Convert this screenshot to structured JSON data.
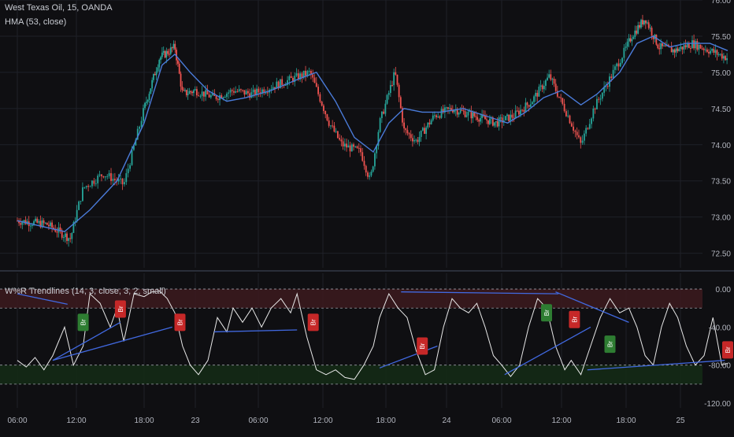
{
  "colors": {
    "bg": "#0f0f12",
    "grid": "#1f2128",
    "up": "#26a69a",
    "down": "#ef5350",
    "hma": "#4a7bd9",
    "wpr": "#e8e8e8",
    "trend": "#4169e1",
    "ob_band": "#3a1a1e",
    "os_band": "#142a16",
    "bull_label": "#2e7d32",
    "bear_label": "#c62828",
    "divider": "#2a2e39"
  },
  "price_pane": {
    "title": "West Texas Oil, 15, OANDA",
    "indicator": "HMA (53, close)",
    "ylim": [
      72.3,
      76.0
    ],
    "ticks": [
      "76.00",
      "75.50",
      "75.00",
      "74.50",
      "74.00",
      "73.50",
      "73.00",
      "72.50"
    ],
    "tick_values": [
      76.0,
      75.5,
      75.0,
      74.5,
      74.0,
      73.5,
      73.0,
      72.5
    ]
  },
  "osc_pane": {
    "title": "W%R Trendlines (14, 3, close, 3, 2, small)",
    "ylim": [
      -120,
      10
    ],
    "ticks": [
      "0.00",
      "-40.00",
      "-80.00",
      "-120.00"
    ],
    "tick_values": [
      0,
      -40,
      -80,
      -120
    ],
    "ob_levels": [
      0,
      -20
    ],
    "os_levels": [
      -80,
      -100
    ]
  },
  "time_axis": {
    "labels": [
      "06:00",
      "12:00",
      "18:00",
      "23",
      "06:00",
      "12:00",
      "18:00",
      "24",
      "06:00",
      "12:00",
      "18:00",
      "25"
    ]
  },
  "chart_data": {
    "type": "line",
    "x_label_positions": [
      0,
      1,
      2,
      3,
      4,
      5,
      6,
      7,
      8,
      9,
      10,
      11
    ],
    "price_close_key": [
      [
        0,
        72.95
      ],
      [
        0.5,
        72.9
      ],
      [
        0.9,
        72.7
      ],
      [
        1.1,
        73.4
      ],
      [
        1.4,
        73.6
      ],
      [
        1.7,
        73.45
      ],
      [
        2.0,
        74.5
      ],
      [
        2.3,
        75.2
      ],
      [
        2.6,
        75.35
      ],
      [
        2.75,
        74.7
      ],
      [
        3.0,
        74.75
      ],
      [
        3.3,
        74.65
      ],
      [
        3.6,
        74.75
      ],
      [
        3.9,
        74.7
      ],
      [
        4.2,
        74.8
      ],
      [
        4.5,
        74.9
      ],
      [
        4.8,
        75.0
      ],
      [
        5.1,
        74.3
      ],
      [
        5.3,
        74.0
      ],
      [
        5.6,
        73.9
      ],
      [
        5.75,
        73.5
      ],
      [
        5.9,
        74.3
      ],
      [
        6.15,
        75.0
      ],
      [
        6.3,
        74.2
      ],
      [
        6.5,
        74.05
      ],
      [
        6.8,
        74.4
      ],
      [
        7.1,
        74.5
      ],
      [
        7.5,
        74.4
      ],
      [
        7.9,
        74.3
      ],
      [
        8.2,
        74.4
      ],
      [
        8.5,
        74.6
      ],
      [
        8.8,
        74.95
      ],
      [
        9.1,
        74.4
      ],
      [
        9.3,
        74.0
      ],
      [
        9.5,
        74.5
      ],
      [
        9.8,
        75.0
      ],
      [
        10.1,
        75.5
      ],
      [
        10.35,
        75.75
      ],
      [
        10.6,
        75.35
      ],
      [
        10.9,
        75.3
      ],
      [
        11.2,
        75.4
      ],
      [
        11.5,
        75.3
      ],
      [
        11.8,
        75.2
      ]
    ],
    "hma_key": [
      [
        0,
        72.95
      ],
      [
        0.8,
        72.8
      ],
      [
        1.2,
        73.1
      ],
      [
        1.6,
        73.5
      ],
      [
        2.0,
        74.3
      ],
      [
        2.35,
        75.1
      ],
      [
        2.6,
        75.25
      ],
      [
        2.9,
        75.0
      ],
      [
        3.2,
        74.75
      ],
      [
        3.5,
        74.6
      ],
      [
        3.8,
        74.65
      ],
      [
        4.2,
        74.75
      ],
      [
        4.6,
        74.9
      ],
      [
        4.9,
        75.0
      ],
      [
        5.2,
        74.6
      ],
      [
        5.5,
        74.1
      ],
      [
        5.8,
        73.9
      ],
      [
        6.05,
        74.3
      ],
      [
        6.3,
        74.5
      ],
      [
        6.6,
        74.45
      ],
      [
        6.9,
        74.45
      ],
      [
        7.3,
        74.5
      ],
      [
        7.7,
        74.4
      ],
      [
        8.1,
        74.3
      ],
      [
        8.4,
        74.45
      ],
      [
        8.7,
        74.65
      ],
      [
        9.0,
        74.75
      ],
      [
        9.3,
        74.55
      ],
      [
        9.55,
        74.7
      ],
      [
        9.9,
        75.0
      ],
      [
        10.2,
        75.4
      ],
      [
        10.5,
        75.5
      ],
      [
        10.8,
        75.35
      ],
      [
        11.1,
        75.4
      ],
      [
        11.5,
        75.4
      ],
      [
        11.8,
        75.3
      ]
    ],
    "wpr_key": [
      [
        0,
        -75
      ],
      [
        0.15,
        -82
      ],
      [
        0.3,
        -72
      ],
      [
        0.45,
        -85
      ],
      [
        0.6,
        -70
      ],
      [
        0.8,
        -40
      ],
      [
        0.95,
        -80
      ],
      [
        1.1,
        -60
      ],
      [
        1.2,
        -5
      ],
      [
        1.35,
        -15
      ],
      [
        1.5,
        -40
      ],
      [
        1.6,
        -20
      ],
      [
        1.7,
        -55
      ],
      [
        1.85,
        -5
      ],
      [
        2.0,
        -8
      ],
      [
        2.15,
        -3
      ],
      [
        2.3,
        -2
      ],
      [
        2.45,
        -10
      ],
      [
        2.6,
        -25
      ],
      [
        2.75,
        -60
      ],
      [
        2.9,
        -80
      ],
      [
        3.05,
        -90
      ],
      [
        3.2,
        -75
      ],
      [
        3.35,
        -30
      ],
      [
        3.5,
        -45
      ],
      [
        3.6,
        -20
      ],
      [
        3.75,
        -35
      ],
      [
        3.9,
        -20
      ],
      [
        4.05,
        -40
      ],
      [
        4.2,
        -20
      ],
      [
        4.35,
        -10
      ],
      [
        4.5,
        -25
      ],
      [
        4.6,
        -5
      ],
      [
        4.75,
        -50
      ],
      [
        4.9,
        -85
      ],
      [
        5.05,
        -90
      ],
      [
        5.2,
        -85
      ],
      [
        5.35,
        -93
      ],
      [
        5.5,
        -95
      ],
      [
        5.65,
        -80
      ],
      [
        5.8,
        -60
      ],
      [
        5.9,
        -30
      ],
      [
        6.05,
        -5
      ],
      [
        6.2,
        -20
      ],
      [
        6.35,
        -30
      ],
      [
        6.5,
        -65
      ],
      [
        6.65,
        -90
      ],
      [
        6.8,
        -85
      ],
      [
        6.95,
        -40
      ],
      [
        7.1,
        -10
      ],
      [
        7.25,
        -20
      ],
      [
        7.4,
        -25
      ],
      [
        7.55,
        -15
      ],
      [
        7.7,
        -40
      ],
      [
        7.85,
        -70
      ],
      [
        8.0,
        -80
      ],
      [
        8.15,
        -92
      ],
      [
        8.3,
        -80
      ],
      [
        8.45,
        -40
      ],
      [
        8.6,
        -10
      ],
      [
        8.75,
        -20
      ],
      [
        8.9,
        -60
      ],
      [
        9.05,
        -85
      ],
      [
        9.15,
        -75
      ],
      [
        9.3,
        -90
      ],
      [
        9.45,
        -60
      ],
      [
        9.6,
        -30
      ],
      [
        9.75,
        -10
      ],
      [
        9.9,
        -25
      ],
      [
        10.05,
        -20
      ],
      [
        10.2,
        -40
      ],
      [
        10.35,
        -70
      ],
      [
        10.5,
        -80
      ],
      [
        10.65,
        -40
      ],
      [
        10.8,
        -15
      ],
      [
        10.95,
        -30
      ],
      [
        11.1,
        -60
      ],
      [
        11.25,
        -80
      ],
      [
        11.4,
        -70
      ],
      [
        11.55,
        -30
      ],
      [
        11.7,
        -80
      ],
      [
        11.8,
        -78
      ]
    ],
    "trendlines": [
      [
        [
          0,
          -5
        ],
        [
          0.85,
          -16
        ]
      ],
      [
        [
          0.6,
          -75
        ],
        [
          1.65,
          -35
        ]
      ],
      [
        [
          0.6,
          -75
        ],
        [
          2.55,
          -40
        ]
      ],
      [
        [
          3.3,
          -45
        ],
        [
          4.6,
          -43
        ]
      ],
      [
        [
          5.9,
          -83
        ],
        [
          6.85,
          -60
        ]
      ],
      [
        [
          6.25,
          -3
        ],
        [
          8.95,
          -5
        ]
      ],
      [
        [
          8.05,
          -90
        ],
        [
          9.45,
          -40
        ]
      ],
      [
        [
          8.9,
          -3
        ],
        [
          10.05,
          -35
        ]
      ],
      [
        [
          9.4,
          -85
        ],
        [
          11.75,
          -75
        ]
      ]
    ],
    "signals": [
      {
        "text": "Br",
        "kind": "bull",
        "x": 1.1,
        "y": -35
      },
      {
        "text": "Br",
        "kind": "bear",
        "x": 1.65,
        "y": -21
      },
      {
        "text": "Br",
        "kind": "bear",
        "x": 2.7,
        "y": -35
      },
      {
        "text": "Br",
        "kind": "bear",
        "x": 4.85,
        "y": -35
      },
      {
        "text": "Br",
        "kind": "bear",
        "x": 6.6,
        "y": -60
      },
      {
        "text": "Br",
        "kind": "bull",
        "x": 8.75,
        "y": -25
      },
      {
        "text": "Br",
        "kind": "bear",
        "x": 9.2,
        "y": -32
      },
      {
        "text": "Br",
        "kind": "bull",
        "x": 9.75,
        "y": -58
      },
      {
        "text": "Br",
        "kind": "bear",
        "x": 11.8,
        "y": -64
      }
    ]
  }
}
